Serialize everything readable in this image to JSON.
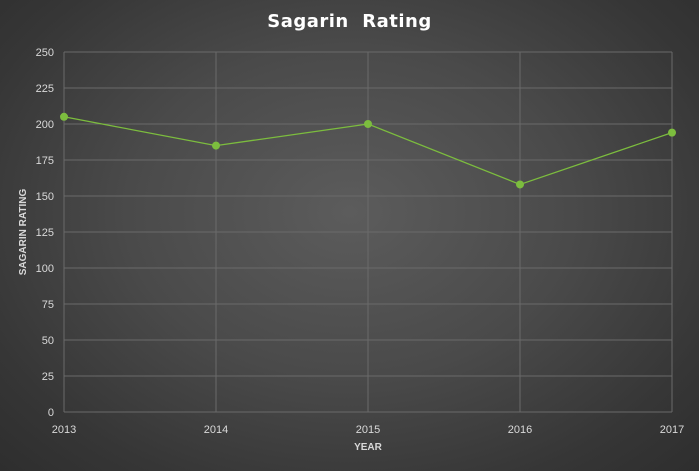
{
  "chart_data": {
    "type": "line",
    "title": "Sagarin  Rating",
    "xlabel": "YEAR",
    "ylabel": "SAGARIN RATING",
    "categories": [
      "2013",
      "2014",
      "2015",
      "2016",
      "2017"
    ],
    "series": [
      {
        "values": [
          205,
          185,
          200,
          158,
          194
        ],
        "color": "#7cbd3e"
      }
    ],
    "ylim": [
      0,
      250
    ],
    "yticks": [
      0,
      25,
      50,
      75,
      100,
      125,
      150,
      175,
      200,
      225,
      250
    ],
    "grid": true,
    "legend": "none"
  },
  "colors": {
    "line": "#7cbd3e",
    "grid": "#6a6a6a",
    "text": "#d9d9d9"
  }
}
